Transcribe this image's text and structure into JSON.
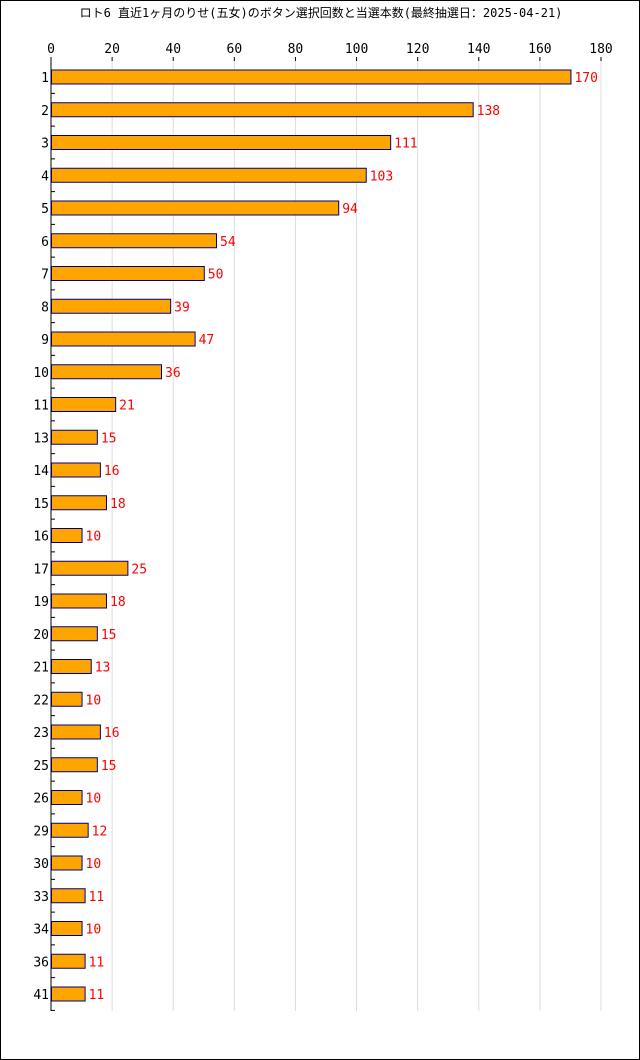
{
  "chart_data": {
    "type": "bar",
    "orientation": "horizontal",
    "title": "ロト6 直近1ヶ月のりせ(五女)のボタン選択回数と当選本数(最終抽選日：2025-04-21)",
    "categories": [
      "1",
      "2",
      "3",
      "4",
      "5",
      "6",
      "7",
      "8",
      "9",
      "10",
      "11",
      "13",
      "14",
      "15",
      "16",
      "17",
      "19",
      "20",
      "21",
      "22",
      "23",
      "25",
      "26",
      "29",
      "30",
      "33",
      "34",
      "36",
      "41"
    ],
    "values": [
      170,
      138,
      111,
      103,
      94,
      54,
      50,
      39,
      47,
      36,
      21,
      15,
      16,
      18,
      10,
      25,
      18,
      15,
      13,
      10,
      16,
      15,
      10,
      12,
      10,
      11,
      10,
      11,
      11
    ],
    "xlim": [
      0,
      180
    ],
    "xticks": [
      0,
      20,
      40,
      60,
      80,
      100,
      120,
      140,
      160,
      180
    ],
    "xlabel": "",
    "ylabel": "",
    "grid": true,
    "legend": "none",
    "colors": {
      "bar_fill": "#ffa500",
      "bar_stroke": "#000080",
      "value_label": "#ff0000",
      "grid": "#dddddd",
      "axis": "#000000"
    }
  }
}
